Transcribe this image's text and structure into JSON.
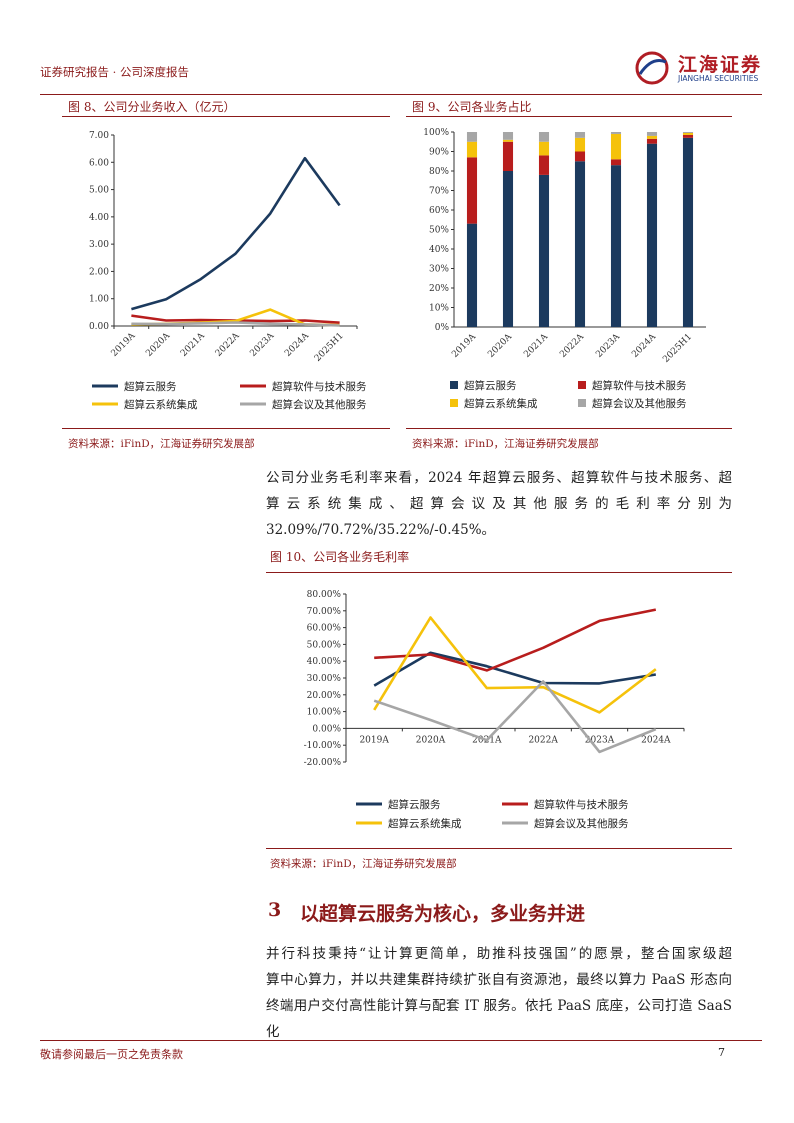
{
  "header": {
    "left_text": "证券研究报告 · 公司深度报告",
    "logo_cn": "江海证券",
    "logo_en": "JIANGHAI SECURITIES"
  },
  "figures": {
    "fig8": {
      "title": "图  8、公司分业务收入（亿元）",
      "source": "资料来源：iFinD，江海证券研究发展部"
    },
    "fig9": {
      "title": "图  9、公司各业务占比",
      "source": "资料来源：iFinD，江海证券研究发展部"
    },
    "fig10": {
      "title": "图  10、公司各业务毛利率",
      "source": "资料来源：iFinD，江海证券研究发展部"
    }
  },
  "colors": {
    "navy": "#1c3a5e",
    "red": "#b81d1d",
    "yellow": "#f5c20b",
    "gray": "#a6a6a6",
    "brand": "#8b1a1a"
  },
  "chart_data": [
    {
      "id": "fig8",
      "type": "line",
      "categories": [
        "2019A",
        "2020A",
        "2021A",
        "2022A",
        "2023A",
        "2024A",
        "2025H1"
      ],
      "ylim": [
        0,
        7
      ],
      "yticks": [
        "0.00",
        "1.00",
        "2.00",
        "3.00",
        "4.00",
        "5.00",
        "6.00",
        "7.00"
      ],
      "series": [
        {
          "name": "超算云服务",
          "color": "#1c3a5e",
          "values": [
            0.62,
            0.98,
            1.72,
            2.65,
            4.12,
            6.15,
            4.42
          ]
        },
        {
          "name": "超算软件与技术服务",
          "color": "#b81d1d",
          "values": [
            0.38,
            0.2,
            0.22,
            0.2,
            0.18,
            0.2,
            0.12
          ]
        },
        {
          "name": "超算云系统集成",
          "color": "#f5c20b",
          "values": [
            0.06,
            0.08,
            0.12,
            0.18,
            0.6,
            0.06,
            0.03
          ]
        },
        {
          "name": "超算会议及其他服务",
          "color": "#a6a6a6",
          "values": [
            0.08,
            0.07,
            0.1,
            0.13,
            0.08,
            0.06,
            0.02
          ]
        }
      ]
    },
    {
      "id": "fig9",
      "type": "bar",
      "stacked": true,
      "categories": [
        "2019A",
        "2020A",
        "2021A",
        "2022A",
        "2023A",
        "2024A",
        "2025H1"
      ],
      "ylim": [
        0,
        100
      ],
      "yticks": [
        "0%",
        "10%",
        "20%",
        "30%",
        "40%",
        "50%",
        "60%",
        "70%",
        "80%",
        "90%",
        "100%"
      ],
      "series": [
        {
          "name": "超算云服务",
          "color": "#1c3a5e",
          "values": [
            53,
            80,
            78,
            85,
            83,
            94,
            97
          ]
        },
        {
          "name": "超算软件与技术服务",
          "color": "#b81d1d",
          "values": [
            34,
            15,
            10,
            5,
            3,
            2.5,
            1.5
          ]
        },
        {
          "name": "超算云系统集成",
          "color": "#f5c20b",
          "values": [
            8,
            1,
            7,
            7,
            13,
            1.5,
            1
          ]
        },
        {
          "name": "超算会议及其他服务",
          "color": "#a6a6a6",
          "values": [
            5,
            4,
            5,
            3,
            1,
            2,
            0.5
          ]
        }
      ]
    },
    {
      "id": "fig10",
      "type": "line",
      "categories": [
        "2019A",
        "2020A",
        "2021A",
        "2022A",
        "2023A",
        "2024A"
      ],
      "ylim": [
        -20,
        80
      ],
      "yticks": [
        "-20.00%",
        "-10.00%",
        "0.00%",
        "10.00%",
        "20.00%",
        "30.00%",
        "40.00%",
        "50.00%",
        "60.00%",
        "70.00%",
        "80.00%"
      ],
      "series": [
        {
          "name": "超算云服务",
          "color": "#1c3a5e",
          "values": [
            25.5,
            45,
            37,
            27,
            26.8,
            32.09
          ]
        },
        {
          "name": "超算软件与技术服务",
          "color": "#b81d1d",
          "values": [
            42,
            44,
            34.5,
            48,
            64,
            70.72
          ]
        },
        {
          "name": "超算云系统集成",
          "color": "#f5c20b",
          "values": [
            11,
            66,
            24,
            24.5,
            9.5,
            35.22
          ]
        },
        {
          "name": "超算会议及其他服务",
          "color": "#a6a6a6",
          "values": [
            16.5,
            5,
            -7,
            28,
            -14,
            -0.45
          ]
        }
      ]
    }
  ],
  "body": {
    "para1_line1": "公司分业务毛利率来看，2024 年超算云服务、超算软件与技术服务、超",
    "para1_line2": "算云系统集成、超算会议及其他服务的毛利率分别为",
    "para1_line3": "32.09%/70.72%/35.22%/-0.45%。",
    "section_number": "3",
    "section_title": "以超算云服务为核心，多业务并进",
    "para2_line1": "并行科技秉持“让计算更简单，助推科技强国”的愿景，整合国家级超",
    "para2_line2": "算中心算力，并以共建集群持续扩张自有资源池，最终以算力 PaaS 形态向",
    "para2_line3": "终端用户交付高性能计算与配套 IT 服务。依托 PaaS 底座，公司打造 SaaS 化"
  },
  "footer": {
    "disclaimer": "敬请参阅最后一页之免责条款",
    "page_number": "7"
  }
}
